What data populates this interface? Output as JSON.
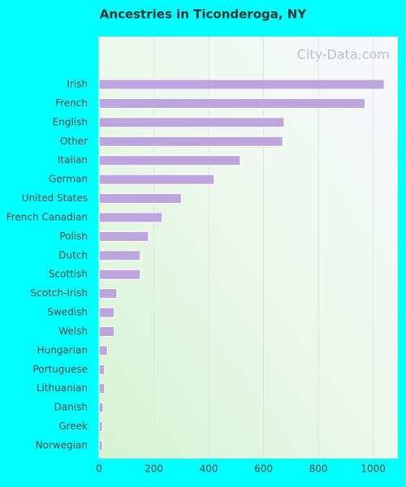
{
  "chart_data": {
    "type": "bar",
    "orientation": "horizontal",
    "title": "Ancestries in Ticonderoga, NY",
    "watermark": "City-Data.com",
    "categories": [
      "Irish",
      "French",
      "English",
      "Other",
      "Italian",
      "German",
      "United States",
      "French Canadian",
      "Polish",
      "Dutch",
      "Scottish",
      "Scotch-Irish",
      "Swedish",
      "Welsh",
      "Hungarian",
      "Portuguese",
      "Lithuanian",
      "Danish",
      "Greek",
      "Norwegian"
    ],
    "values": [
      1040,
      970,
      675,
      670,
      515,
      420,
      300,
      230,
      180,
      150,
      150,
      65,
      55,
      55,
      30,
      20,
      20,
      15,
      12,
      12
    ],
    "color": "#bba5dc",
    "xlim": [
      0,
      1090
    ],
    "xticks": [
      0,
      200,
      400,
      600,
      800,
      1000
    ],
    "grid": true
  }
}
